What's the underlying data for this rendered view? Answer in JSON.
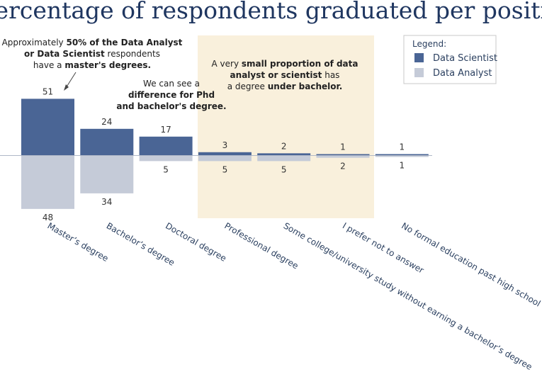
{
  "chart_data": {
    "type": "bar",
    "title": "Percentage of respondents graduated per position",
    "xlabel": "",
    "ylabel": "",
    "ylim": [
      -55,
      60
    ],
    "categories": [
      "Master’s degree",
      "Bachelor’s degree",
      "Doctoral degree",
      "Professional degree",
      "Some college/university study without earning a bachelor’s degree",
      "I prefer not to answer",
      "No formal education past high school"
    ],
    "series": [
      {
        "name": "Data Scientist",
        "values": [
          51,
          24,
          17,
          3,
          2,
          1,
          1
        ]
      },
      {
        "name": "Data Analyst",
        "values": [
          48,
          34,
          5,
          5,
          5,
          2,
          1
        ]
      }
    ],
    "legend": {
      "title": "Legend:",
      "position": "top-right"
    },
    "colors": {
      "data_scientist": "#4a6595",
      "data_analyst": "#c5cbd8",
      "highlight": "#f9f0dc"
    },
    "annotations": [
      {
        "id": "masters",
        "lines": [
          [
            {
              "text": "Approximately ",
              "bold": false
            },
            {
              "text": "50% of the Data Analyst",
              "bold": true
            }
          ],
          [
            {
              "text": "or Data Scientist",
              "bold": true
            },
            {
              "text": " respondents",
              "bold": false
            }
          ],
          [
            {
              "text": "have a ",
              "bold": false
            },
            {
              "text": "master's degrees.",
              "bold": true
            }
          ]
        ]
      },
      {
        "id": "phd",
        "lines": [
          [
            {
              "text": "We can see a",
              "bold": false
            }
          ],
          [
            {
              "text": "difference for Phd",
              "bold": true
            }
          ],
          [
            {
              "text": "and bachelor's degree.",
              "bold": true
            }
          ]
        ]
      },
      {
        "id": "under-bachelor",
        "lines": [
          [
            {
              "text": "A very  ",
              "bold": false
            },
            {
              "text": "small proportion of data",
              "bold": true
            }
          ],
          [
            {
              "text": "analyst or scientist",
              "bold": true
            },
            {
              "text": " has",
              "bold": false
            }
          ],
          [
            {
              "text": "a degree ",
              "bold": false
            },
            {
              "text": "under bachelor.",
              "bold": true
            }
          ]
        ]
      }
    ]
  }
}
